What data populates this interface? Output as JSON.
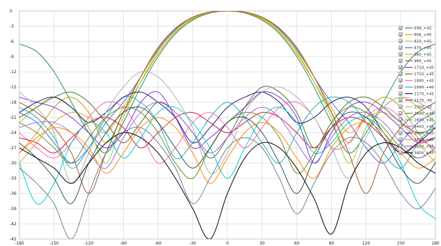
{
  "chart_data": {
    "type": "line",
    "grid": true,
    "legend_placement": "right",
    "xlim": [
      -180,
      180
    ],
    "ylim": [
      -45,
      0
    ],
    "xticks": [
      "-180",
      "-150",
      "-120",
      "-90",
      "-60",
      "-30",
      "0",
      "30",
      "60",
      "90",
      "120",
      "150",
      "180"
    ],
    "yticks": [
      "0",
      "-3",
      "-6",
      "-9",
      "-12",
      "-15",
      "-18",
      "-21",
      "-24",
      "-27",
      "-30",
      "-33",
      "-36",
      "-39",
      "-42",
      "-45"
    ],
    "x": [
      -180,
      -165,
      -150,
      -135,
      -120,
      -105,
      -90,
      -75,
      -60,
      -45,
      -30,
      -15,
      0,
      15,
      30,
      45,
      60,
      75,
      90,
      105,
      120,
      135,
      150,
      165,
      180
    ],
    "series": [
      {
        "name": "698_+45",
        "color": "#2e8b57",
        "values": [
          -6.5,
          -8,
          -12,
          -18,
          -24,
          -28,
          -22,
          -15,
          -9,
          -4.5,
          -1.8,
          -0.4,
          0,
          -0.4,
          -1.8,
          -4.5,
          -9,
          -15,
          -22,
          -28,
          -24,
          -18,
          -12,
          -8,
          -6.5
        ]
      },
      {
        "name": "806_+45",
        "color": "#b8a000",
        "values": [
          -28,
          -24,
          -19,
          -17,
          -20,
          -26,
          -20,
          -14,
          -8.5,
          -4.2,
          -1.6,
          -0.3,
          0,
          -0.3,
          -1.6,
          -4.2,
          -8.5,
          -14,
          -20,
          -26,
          -20,
          -17,
          -19,
          -24,
          -28
        ]
      },
      {
        "name": "820_+45",
        "color": "#9acd32",
        "values": [
          -22,
          -19,
          -17,
          -19,
          -23,
          -30,
          -21,
          -14,
          -8,
          -3.9,
          -1.4,
          -0.3,
          0,
          -0.3,
          -1.4,
          -3.9,
          -8,
          -14,
          -21,
          -30,
          -23,
          -19,
          -17,
          -19,
          -22
        ]
      },
      {
        "name": "875_+45",
        "color": "#4169e1",
        "values": [
          -20,
          -22,
          -26,
          -30,
          -27,
          -22,
          -18,
          -13,
          -7.5,
          -3.6,
          -1.3,
          -0.2,
          0,
          -0.2,
          -1.3,
          -3.6,
          -7.5,
          -13,
          -18,
          -22,
          -27,
          -30,
          -26,
          -22,
          -20
        ]
      },
      {
        "name": "880_+45",
        "color": "#daa520",
        "values": [
          -30,
          -26,
          -22,
          -20,
          -21,
          -24,
          -19,
          -13,
          -7.8,
          -3.8,
          -1.3,
          -0.3,
          0,
          -0.3,
          -1.3,
          -3.8,
          -7.8,
          -13,
          -19,
          -24,
          -21,
          -20,
          -22,
          -26,
          -30
        ]
      },
      {
        "name": "960_+45",
        "color": "#a0522d",
        "values": [
          -18,
          -20,
          -23,
          -28,
          -36,
          -28,
          -20,
          -13,
          -7.2,
          -3.4,
          -1.2,
          -0.2,
          0,
          -0.2,
          -1.2,
          -3.4,
          -7.2,
          -13,
          -20,
          -28,
          -36,
          -28,
          -23,
          -20,
          -18
        ]
      },
      {
        "name": "1710_+45",
        "color": "#8a2be2",
        "values": [
          -17,
          -18,
          -19,
          -21,
          -24,
          -27,
          -24,
          -18,
          -16,
          -21,
          -27,
          -25,
          -22,
          -19,
          -16,
          -17,
          -21,
          -30,
          -24,
          -19,
          -18,
          -20,
          -23,
          -26,
          -25
        ]
      },
      {
        "name": "1710_+45",
        "color": "#556b2f",
        "values": [
          -21,
          -19,
          -17,
          -16,
          -18,
          -22,
          -26,
          -22,
          -18,
          -20,
          -24,
          -29,
          -25,
          -19,
          -15,
          -16,
          -20,
          -27,
          -22,
          -18,
          -17,
          -19,
          -22,
          -24,
          -23
        ]
      },
      {
        "name": "1880_+45",
        "color": "#ff69b4",
        "values": [
          -24,
          -27,
          -29,
          -26,
          -21,
          -18,
          -19,
          -24,
          -30,
          -27,
          -22,
          -20,
          -23,
          -27,
          -23,
          -19,
          -18,
          -21,
          -27,
          -26,
          -21,
          -19,
          -21,
          -25,
          -27
        ]
      },
      {
        "name": "1990_+45",
        "color": "#20b2aa",
        "values": [
          -19,
          -21,
          -25,
          -31,
          -27,
          -21,
          -17,
          -18,
          -22,
          -29,
          -26,
          -21,
          -18,
          -21,
          -26,
          -30,
          -24,
          -19,
          -17,
          -18,
          -22,
          -28,
          -31,
          -26,
          -22
        ]
      },
      {
        "name": "2170_+45",
        "color": "#191970",
        "values": [
          -20,
          -18,
          -17,
          -19,
          -22,
          -20,
          -17,
          -16,
          -18,
          -21,
          -26,
          -23,
          -19,
          -17,
          -16,
          -18,
          -22,
          -21,
          -18,
          -17,
          -19,
          -24,
          -28,
          -26,
          -23
        ]
      },
      {
        "name": "2170_-45",
        "color": "#dc143c",
        "values": [
          -25,
          -26,
          -28,
          -25,
          -22,
          -21,
          -23,
          -27,
          -24,
          -21,
          -20,
          -22,
          -24,
          -22,
          -20,
          -21,
          -24,
          -27,
          -23,
          -21,
          -22,
          -25,
          -28,
          -26,
          -25
        ]
      },
      {
        "name": "2300_-45",
        "color": "#b0b0b0",
        "values": [
          -16,
          -19,
          -24,
          -34,
          -28,
          -20,
          -15,
          -12,
          -13,
          -17,
          -23,
          -32,
          -28,
          -20,
          -16,
          -15,
          -17,
          -21,
          -27,
          -33,
          -25,
          -19,
          -17,
          -18,
          -20
        ]
      },
      {
        "name": "2690_+45",
        "color": "#6b8e23",
        "values": [
          -22,
          -24,
          -27,
          -30,
          -25,
          -21,
          -19,
          -20,
          -24,
          -30,
          -33,
          -27,
          -22,
          -20,
          -21,
          -25,
          -32,
          -28,
          -22,
          -19,
          -20,
          -23,
          -27,
          -29,
          -27
        ]
      },
      {
        "name": "2690_+45",
        "color": "#00ced1",
        "values": [
          -30,
          -38,
          -34,
          -26,
          -22,
          -24,
          -29,
          -25,
          -20,
          -19,
          -22,
          -27,
          -33,
          -27,
          -21,
          -19,
          -22,
          -28,
          -26,
          -22,
          -21,
          -24,
          -30,
          -38,
          -41
        ]
      },
      {
        "name": "3400_+45",
        "color": "#9370db",
        "values": [
          -23,
          -22,
          -22,
          -24,
          -28,
          -31,
          -25,
          -20,
          -18,
          -20,
          -24,
          -28,
          -25,
          -21,
          -19,
          -21,
          -26,
          -30,
          -25,
          -21,
          -20,
          -22,
          -26,
          -29,
          -27
        ]
      },
      {
        "name": "3600_+45",
        "color": "#2f4f4f",
        "values": [
          -26,
          -29,
          -33,
          -38,
          -30,
          -24,
          -20,
          -19,
          -22,
          -27,
          -31,
          -27,
          -22,
          -21,
          -24,
          -30,
          -36,
          -29,
          -23,
          -20,
          -21,
          -25,
          -31,
          -34,
          -30
        ]
      },
      {
        "name": "3800_+45",
        "color": "#ff8c00",
        "values": [
          -28,
          -25,
          -23,
          -24,
          -27,
          -32,
          -28,
          -23,
          -21,
          -23,
          -28,
          -34,
          -29,
          -24,
          -22,
          -24,
          -29,
          -33,
          -27,
          -23,
          -22,
          -24,
          -28,
          -31,
          -29
        ]
      },
      {
        "name": "3600_+45",
        "color": "#708090",
        "values": [
          -31,
          -34,
          -38,
          -45,
          -36,
          -28,
          -24,
          -23,
          -26,
          -31,
          -38,
          -33,
          -27,
          -25,
          -27,
          -33,
          -40,
          -34,
          -28,
          -25,
          -26,
          -30,
          -36,
          -39,
          -35
        ]
      },
      {
        "name": "3800_+45",
        "color": "#000000",
        "values": [
          -27,
          -29,
          -31,
          -34,
          -30,
          -26,
          -24,
          -25,
          -28,
          -33,
          -39,
          -45,
          -36,
          -29,
          -26,
          -27,
          -31,
          -37,
          -44,
          -34,
          -28,
          -26,
          -27,
          -30,
          -32
        ]
      }
    ]
  }
}
